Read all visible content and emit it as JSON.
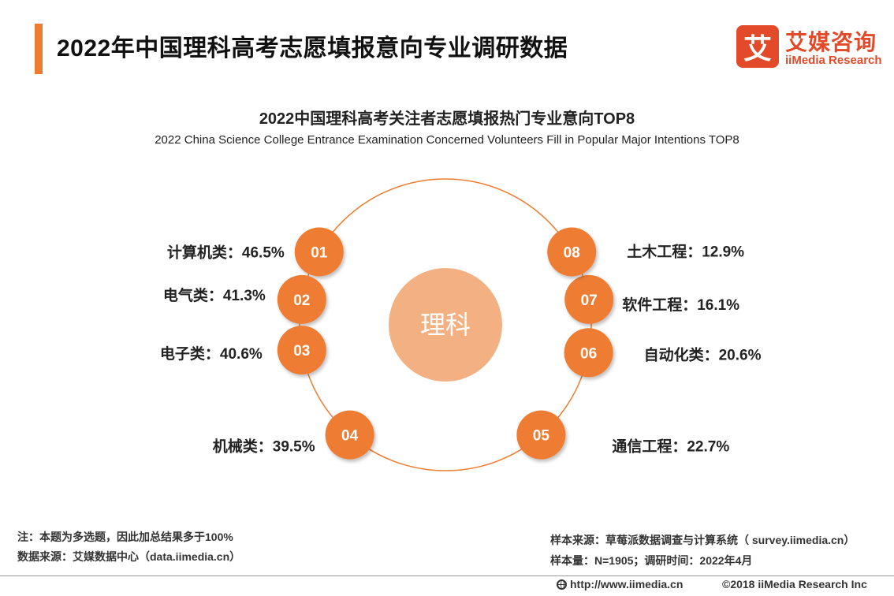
{
  "header": {
    "title": "2022年中国理科高考志愿填报意向专业调研数据"
  },
  "logo": {
    "mark": "艾",
    "name_cn": "艾媒咨询",
    "name_en": "iiMedia Research"
  },
  "chart_data": {
    "type": "radial-list",
    "title": "2022中国理科高考关注者志愿填报热门专业意向TOP8",
    "subtitle": "2022 China Science College Entrance Examination Concerned Volunteers Fill in Popular Major Intentions TOP8",
    "center_label": "理科",
    "unit": "%",
    "items": [
      {
        "rank": "01",
        "label": "计算机类：46.5%",
        "category": "计算机类",
        "value": 46.5
      },
      {
        "rank": "02",
        "label": "电气类：41.3%",
        "category": "电气类",
        "value": 41.3
      },
      {
        "rank": "03",
        "label": "电子类：40.6%",
        "category": "电子类",
        "value": 40.6
      },
      {
        "rank": "04",
        "label": "机械类：39.5%",
        "category": "机械类",
        "value": 39.5
      },
      {
        "rank": "05",
        "label": "通信工程：22.7%",
        "category": "通信工程",
        "value": 22.7
      },
      {
        "rank": "06",
        "label": "自动化类：20.6%",
        "category": "自动化类",
        "value": 20.6
      },
      {
        "rank": "07",
        "label": "软件工程：16.1%",
        "category": "软件工程",
        "value": 16.1
      },
      {
        "rank": "08",
        "label": "土木工程：12.9%",
        "category": "土木工程",
        "value": 12.9
      }
    ]
  },
  "notes": {
    "note": "注：本题为多选题，因此加总结果多于100%",
    "data_source": "数据来源：艾媒数据中心（data.iimedia.cn）",
    "sample_source": "样本来源：草莓派数据调查与计算系统（ survey.iimedia.cn）",
    "sample_size": "样本量：N=1905；调研时间：2022年4月"
  },
  "footer": {
    "url": "http://www.iimedia.cn",
    "copyright": "©2018  iiMedia Research  Inc"
  },
  "colors": {
    "accent": "#ee7b30",
    "badge": "#ee7b30",
    "center_circle": "#f3b183",
    "ring": "#ee7b30",
    "logo": "#e24a2a"
  }
}
